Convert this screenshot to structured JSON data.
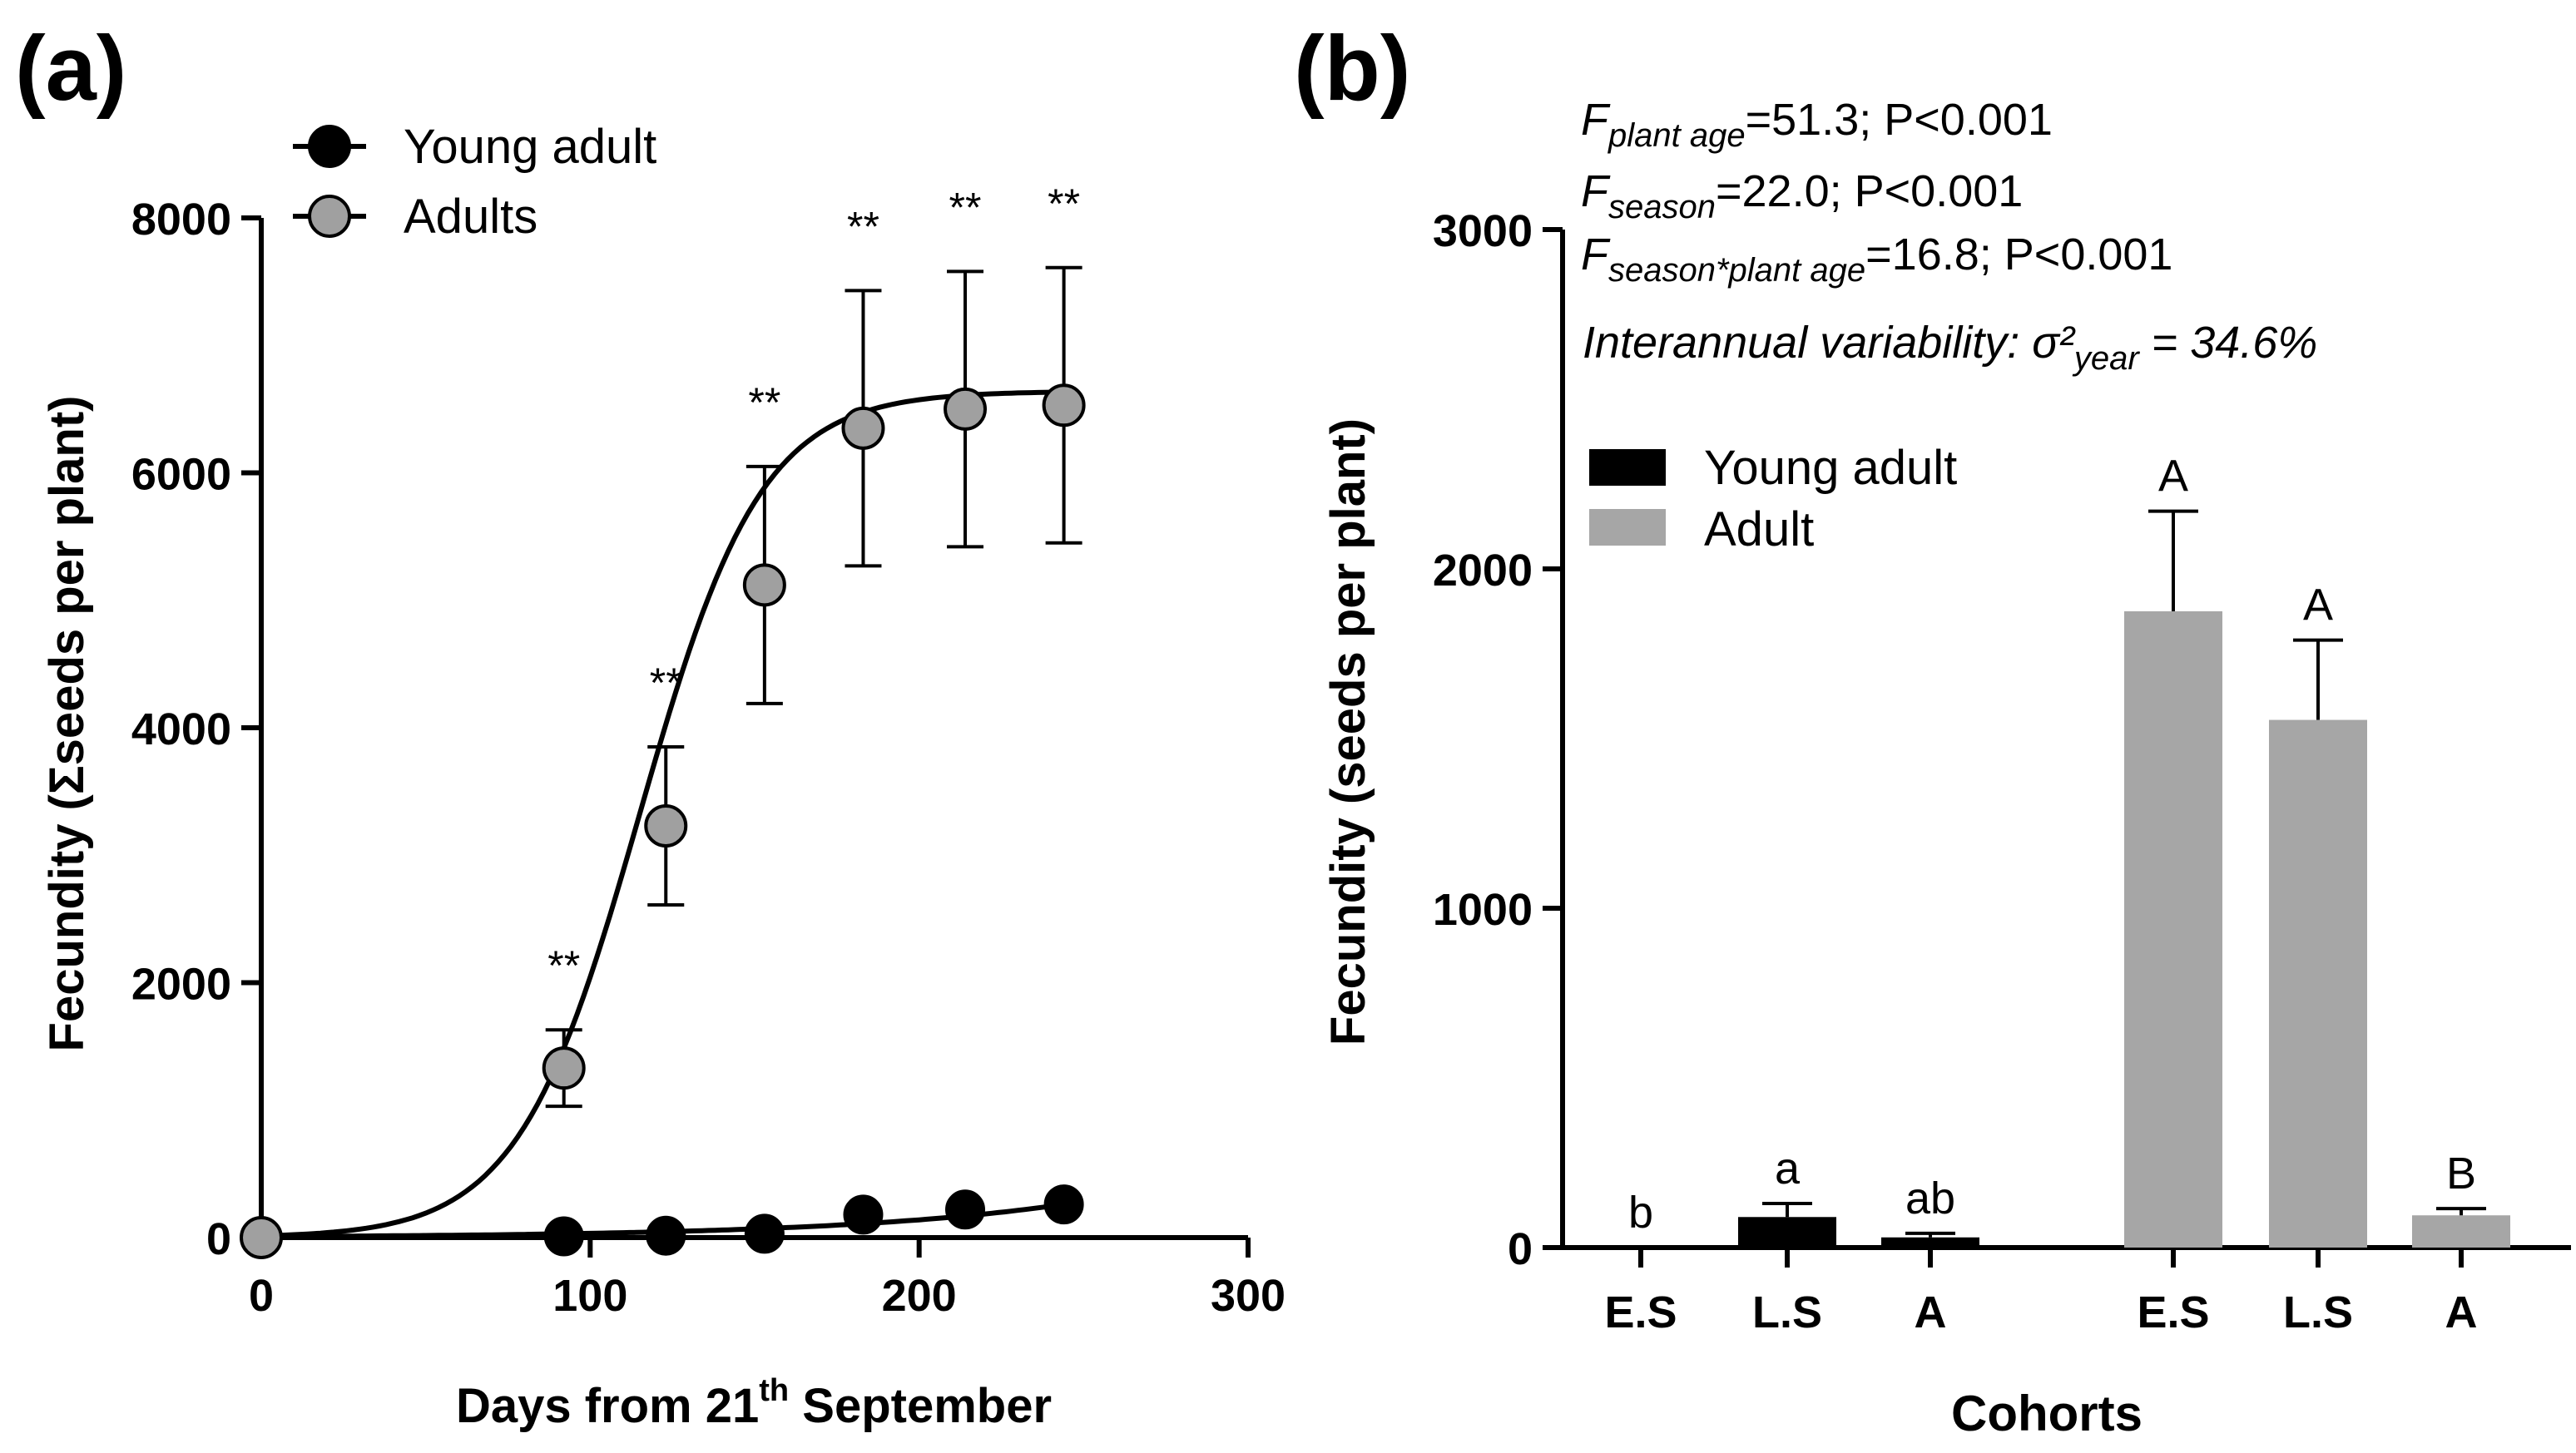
{
  "colors": {
    "black": "#000000",
    "gray": "#a6a6a6",
    "young_marker": "#000000",
    "adult_marker": "#a0a0a0",
    "young_bar": "#000000",
    "adult_bar": "#a6a6a6"
  },
  "panel_a": {
    "label": "(a)",
    "xlabel_pre": "Days from 21",
    "xlabel_sup": "th",
    "xlabel_post": " September",
    "ylabel": "Fecundity (Σseeds per plant)",
    "legend": [
      "Young adult",
      "Adults"
    ]
  },
  "panel_b": {
    "label": "(b)",
    "xlabel": "Cohorts",
    "ylabel": "Fecundity (seeds per plant)",
    "legend": [
      "Young adult",
      "Adult"
    ],
    "stats": {
      "l1_F": "F",
      "l1_sub": "plant age",
      "l1_rest": "=51.3; P<0.001",
      "l2_F": "F",
      "l2_sub": "season",
      "l2_rest": "=22.0; P<0.001",
      "l3_F": "F",
      "l3_sub": "season*plant age",
      "l3_rest": "=16.8; P<0.001",
      "l4_pre": "Interannual variability: σ²",
      "l4_sub": "year",
      "l4_post": " = 34.6%"
    }
  },
  "chart_data": [
    {
      "type": "scatter",
      "title": "(a)",
      "xlabel": "Days from 21th September",
      "ylabel": "Fecundity (Σseeds per plant)",
      "xlim": [
        0,
        300
      ],
      "ylim": [
        0,
        8000
      ],
      "x_ticks": [
        0,
        100,
        200,
        300
      ],
      "y_ticks": [
        0,
        2000,
        4000,
        6000,
        8000
      ],
      "legend_position": "top-left",
      "series": [
        {
          "name": "Young adult",
          "x": [
            0,
            92,
            123,
            153,
            183,
            214,
            244
          ],
          "y": [
            0,
            10,
            15,
            30,
            180,
            220,
            260
          ],
          "fit": "exponential"
        },
        {
          "name": "Adults",
          "x": [
            0,
            92,
            123,
            153,
            183,
            214,
            244
          ],
          "y": [
            0,
            1330,
            3230,
            5120,
            6350,
            6500,
            6530
          ],
          "err": [
            0,
            300,
            620,
            930,
            1080,
            1080,
            1080
          ],
          "fit": "sigmoid",
          "annotations": [
            "",
            "**",
            "**",
            "**",
            "**",
            "**",
            "**"
          ]
        }
      ]
    },
    {
      "type": "bar",
      "title": "(b)",
      "xlabel": "Cohorts",
      "ylabel": "Fecundity (seeds per plant)",
      "ylim": [
        0,
        3000
      ],
      "y_ticks": [
        0,
        1000,
        2000,
        3000
      ],
      "legend_position": "top-left",
      "series": [
        {
          "name": "Young adult",
          "categories": [
            "E.S",
            "L.S",
            "A"
          ],
          "values": [
            0,
            90,
            30
          ],
          "err": [
            0,
            40,
            12
          ],
          "letters": [
            "b",
            "a",
            "ab"
          ]
        },
        {
          "name": "Adult",
          "categories": [
            "E.S",
            "L.S",
            "A"
          ],
          "values": [
            1875,
            1555,
            95
          ],
          "err": [
            295,
            235,
            20
          ],
          "letters": [
            "A",
            "A",
            "B"
          ]
        }
      ]
    }
  ]
}
